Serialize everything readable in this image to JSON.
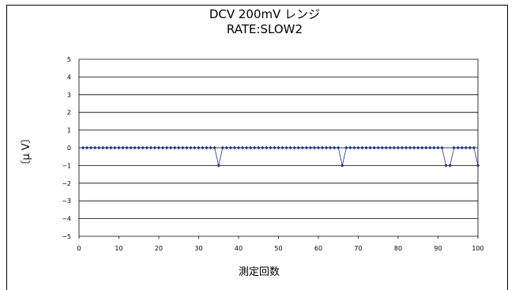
{
  "chart_data": {
    "type": "line",
    "title": "DCV 200mV レンジ",
    "subtitle": "RATE:SLOW2",
    "xlabel": "測定回数",
    "ylabel": "〔μ V〕",
    "xlim": [
      0,
      100
    ],
    "ylim": [
      -5,
      5
    ],
    "x_ticks": [
      "0",
      "10",
      "20",
      "30",
      "40",
      "50",
      "60",
      "70",
      "80",
      "90",
      "100"
    ],
    "y_ticks": [
      "5",
      "4",
      "3",
      "2",
      "1",
      "0",
      "−1",
      "−2",
      "−3",
      "−4",
      "−5"
    ],
    "grid": "horizontal",
    "marker_color": "#1f3a8a",
    "line_color": "#1f3a8a",
    "series": [
      {
        "x": [
          1,
          2,
          3,
          4,
          5,
          6,
          7,
          8,
          9,
          10,
          11,
          12,
          13,
          14,
          15,
          16,
          17,
          18,
          19,
          20,
          21,
          22,
          23,
          24,
          25,
          26,
          27,
          28,
          29,
          30,
          31,
          32,
          33,
          34,
          35,
          36,
          37,
          38,
          39,
          40,
          41,
          42,
          43,
          44,
          45,
          46,
          47,
          48,
          49,
          50,
          51,
          52,
          53,
          54,
          55,
          56,
          57,
          58,
          59,
          60,
          61,
          62,
          63,
          64,
          65,
          66,
          67,
          68,
          69,
          70,
          71,
          72,
          73,
          74,
          75,
          76,
          77,
          78,
          79,
          80,
          81,
          82,
          83,
          84,
          85,
          86,
          87,
          88,
          89,
          90,
          91,
          92,
          93,
          94,
          95,
          96,
          97,
          98,
          99,
          100
        ],
        "values": [
          0,
          0,
          0,
          0,
          0,
          0,
          0,
          0,
          0,
          0,
          0,
          0,
          0,
          0,
          0,
          0,
          0,
          0,
          0,
          0,
          0,
          0,
          0,
          0,
          0,
          0,
          0,
          0,
          0,
          0,
          0,
          0,
          0,
          0,
          -1,
          0,
          0,
          0,
          0,
          0,
          0,
          0,
          0,
          0,
          0,
          0,
          0,
          0,
          0,
          0,
          0,
          0,
          0,
          0,
          0,
          0,
          0,
          0,
          0,
          0,
          0,
          0,
          0,
          0,
          0,
          -1,
          0,
          0,
          0,
          0,
          0,
          0,
          0,
          0,
          0,
          0,
          0,
          0,
          0,
          0,
          0,
          0,
          0,
          0,
          0,
          0,
          0,
          0,
          0,
          0,
          0,
          -1,
          -1,
          0,
          0,
          0,
          0,
          0,
          0,
          -1
        ]
      }
    ]
  }
}
